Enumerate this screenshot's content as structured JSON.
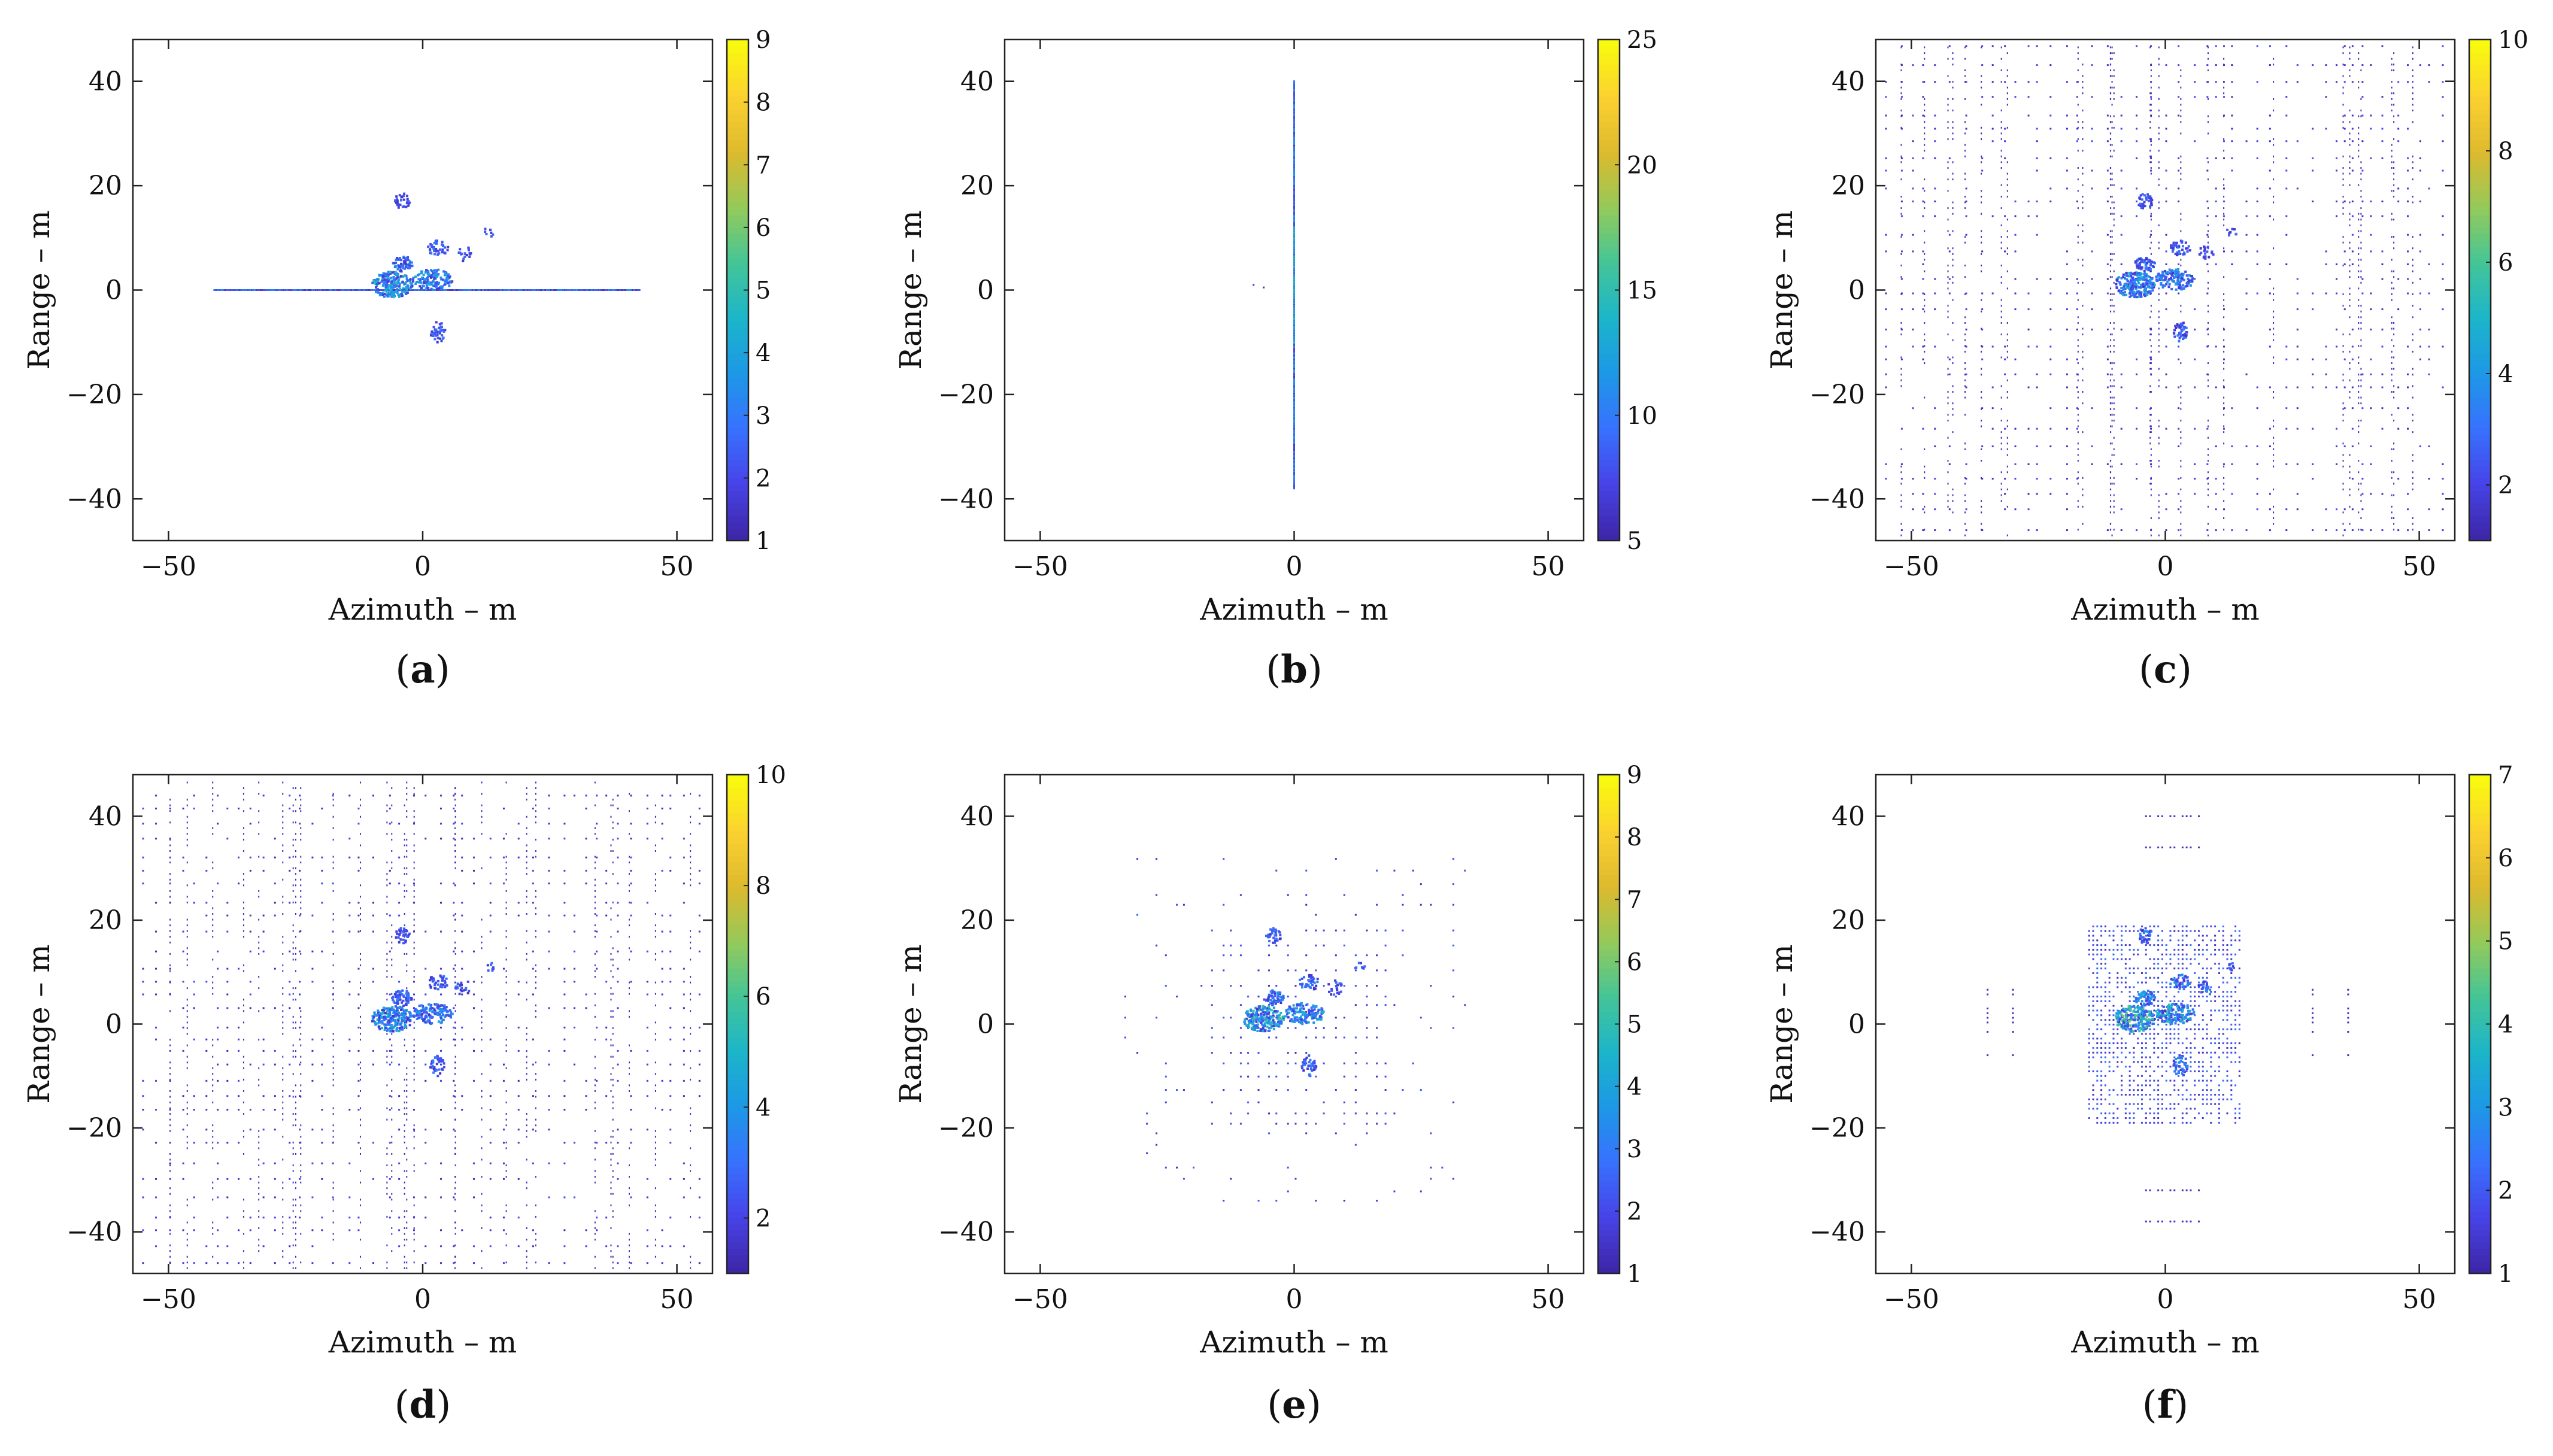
{
  "figure": {
    "colormap": [
      "#3e26a8",
      "#4744e8",
      "#3772fe",
      "#1d98e6",
      "#1cb5c9",
      "#44c597",
      "#93ca5a",
      "#ddb92e",
      "#fbd130",
      "#f9fb0e"
    ],
    "background": "#ffffff",
    "axes_color": "#222222"
  },
  "chart_data": [
    {
      "id": "a",
      "caption": "a",
      "type": "scatter",
      "xlabel": "Azimuth – m",
      "ylabel": "Range – m",
      "xlim": [
        -57,
        57
      ],
      "ylim": [
        -48,
        48
      ],
      "xticks": [
        -50,
        0,
        50
      ],
      "yticks": [
        -40,
        -20,
        0,
        20,
        40
      ],
      "colorbar": {
        "min": 1,
        "max": 9,
        "ticks": [
          1,
          2,
          3,
          4,
          5,
          6,
          7,
          8,
          9
        ]
      },
      "pattern": "cross-line"
    },
    {
      "id": "b",
      "caption": "b",
      "type": "scatter",
      "xlabel": "Azimuth – m",
      "ylabel": "Range – m",
      "xlim": [
        -57,
        57
      ],
      "ylim": [
        -48,
        48
      ],
      "xticks": [
        -50,
        0,
        50
      ],
      "yticks": [
        -40,
        -20,
        0,
        20,
        40
      ],
      "colorbar": {
        "min": 5,
        "max": 25,
        "ticks": [
          5,
          10,
          15,
          20,
          25
        ]
      },
      "pattern": "vertical-line"
    },
    {
      "id": "c",
      "caption": "c",
      "type": "scatter",
      "xlabel": "Azimuth – m",
      "ylabel": "Range – m",
      "xlim": [
        -57,
        57
      ],
      "ylim": [
        -48,
        48
      ],
      "xticks": [
        -50,
        0,
        50
      ],
      "yticks": [
        -40,
        -20,
        0,
        20,
        40
      ],
      "colorbar": {
        "min": 1,
        "max": 10,
        "ticks": [
          2,
          4,
          6,
          8,
          10
        ]
      },
      "pattern": "full-grid"
    },
    {
      "id": "d",
      "caption": "d",
      "type": "scatter",
      "xlabel": "Azimuth – m",
      "ylabel": "Range – m",
      "xlim": [
        -57,
        57
      ],
      "ylim": [
        -48,
        48
      ],
      "xticks": [
        -50,
        0,
        50
      ],
      "yticks": [
        -40,
        -20,
        0,
        20,
        40
      ],
      "colorbar": {
        "min": 1,
        "max": 10,
        "ticks": [
          2,
          4,
          6,
          8,
          10
        ]
      },
      "pattern": "full-grid"
    },
    {
      "id": "e",
      "caption": "e",
      "type": "scatter",
      "xlabel": "Azimuth – m",
      "ylabel": "Range – m",
      "xlim": [
        -57,
        57
      ],
      "ylim": [
        -48,
        48
      ],
      "xticks": [
        -50,
        0,
        50
      ],
      "yticks": [
        -40,
        -20,
        0,
        20,
        40
      ],
      "colorbar": {
        "min": 1,
        "max": 9,
        "ticks": [
          1,
          2,
          3,
          4,
          5,
          6,
          7,
          8,
          9
        ]
      },
      "pattern": "diamond-grid"
    },
    {
      "id": "f",
      "caption": "f",
      "type": "scatter",
      "xlabel": "Azimuth – m",
      "ylabel": "Range – m",
      "xlim": [
        -57,
        57
      ],
      "ylim": [
        -48,
        48
      ],
      "xticks": [
        -50,
        0,
        50
      ],
      "yticks": [
        -40,
        -20,
        0,
        20,
        40
      ],
      "colorbar": {
        "min": 1,
        "max": 7,
        "ticks": [
          1,
          2,
          3,
          4,
          5,
          6,
          7
        ]
      },
      "pattern": "block-grid"
    }
  ]
}
